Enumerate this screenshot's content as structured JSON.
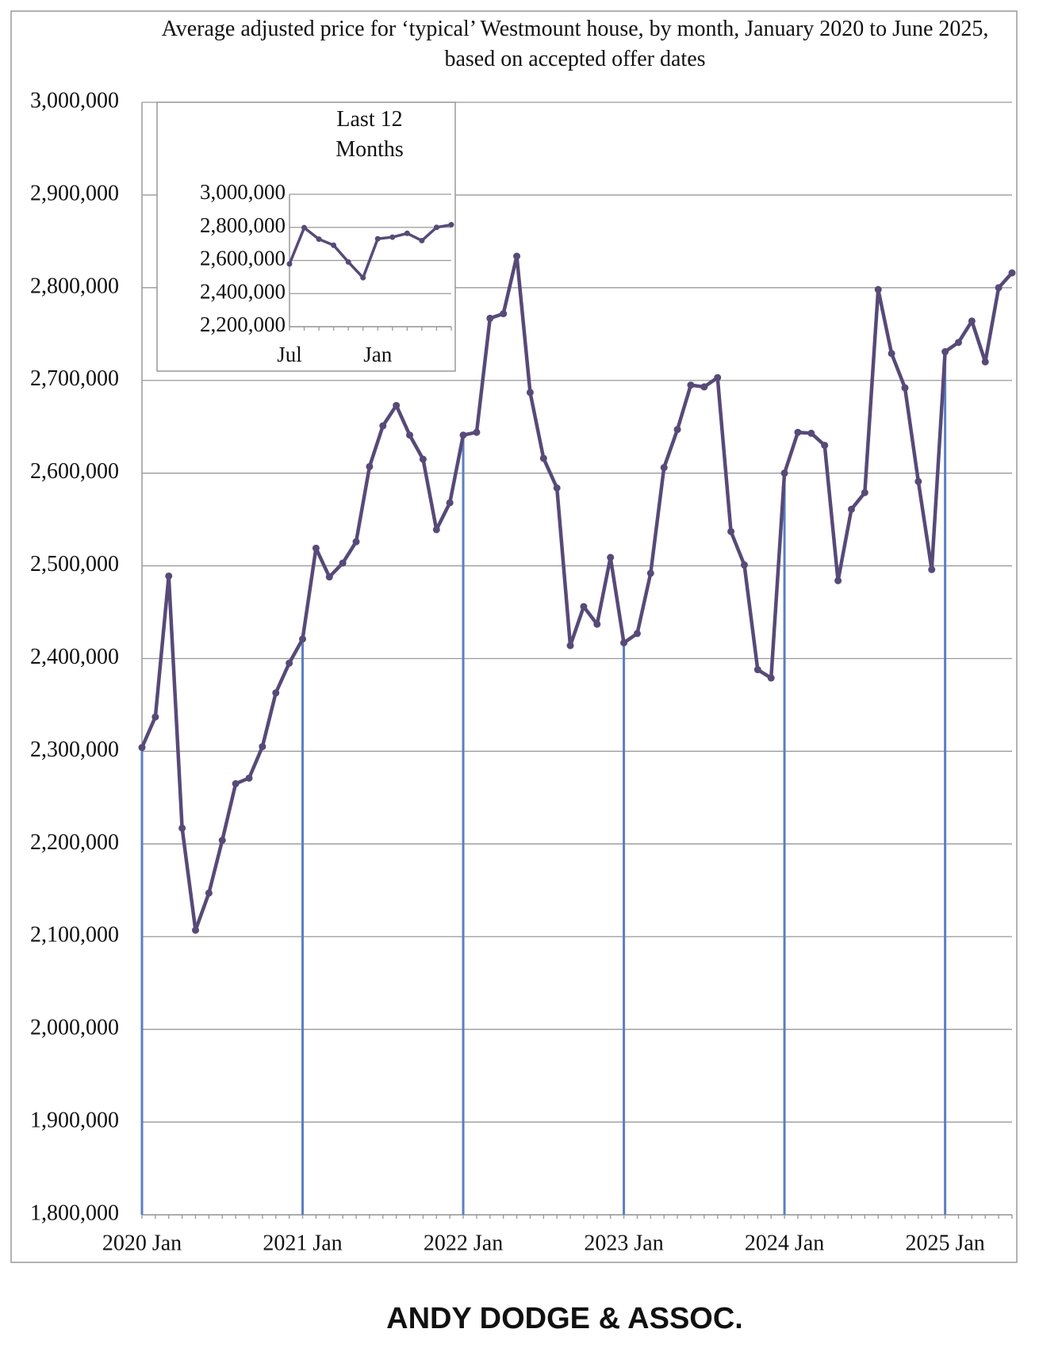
{
  "chart_data": [
    {
      "type": "line",
      "title": "Average adjusted price for ‘typical’ Westmount house, by month, January 2020 to June 2025, based on accepted offer dates",
      "categories": [
        "2020 Jan",
        null,
        null,
        null,
        null,
        null,
        null,
        null,
        null,
        null,
        null,
        null,
        "2021 Jan",
        null,
        null,
        null,
        null,
        null,
        null,
        null,
        null,
        null,
        null,
        null,
        "2022 Jan",
        null,
        null,
        null,
        null,
        null,
        null,
        null,
        null,
        null,
        null,
        null,
        "2023 Jan",
        null,
        null,
        null,
        null,
        null,
        null,
        null,
        null,
        null,
        null,
        null,
        "2024 Jan",
        null,
        null,
        null,
        null,
        null,
        null,
        null,
        null,
        null,
        null,
        null,
        "2025 Jan",
        null,
        null,
        null,
        null,
        null
      ],
      "series": [
        {
          "color": "#574a78",
          "values": [
            2304000,
            2337000,
            2489000,
            2217000,
            2107000,
            2147000,
            2204000,
            2265000,
            2271000,
            2305000,
            2363000,
            2395000,
            2421000,
            2519000,
            2488000,
            2503000,
            2526000,
            2607000,
            2651000,
            2673000,
            2641000,
            2615000,
            2539000,
            2568000,
            2641000,
            2644000,
            2767000,
            2772000,
            2834000,
            2687000,
            2616000,
            2584000,
            2414000,
            2456000,
            2437000,
            2509000,
            2417000,
            2427000,
            2492000,
            2606000,
            2647000,
            2695000,
            2693000,
            2703000,
            2537000,
            2501000,
            2388000,
            2379000,
            2600000,
            2644000,
            2643000,
            2630000,
            2484000,
            2561000,
            2579000,
            2798000,
            2729000,
            2692000,
            2591000,
            2496000,
            2731000,
            2741000,
            2764000,
            2720000,
            2800000,
            2816000
          ]
        }
      ],
      "drop_line_color": "#5b7fc0",
      "ylim": [
        1800000,
        3000000
      ],
      "yticks": [
        {
          "value": 1800000,
          "label": "1,800,000"
        },
        {
          "value": 1900000,
          "label": "1,900,000"
        },
        {
          "value": 2000000,
          "label": "2,000,000"
        },
        {
          "value": 2100000,
          "label": "2,100,000"
        },
        {
          "value": 2200000,
          "label": "2,200,000"
        },
        {
          "value": 2300000,
          "label": "2,300,000"
        },
        {
          "value": 2400000,
          "label": "2,400,000"
        },
        {
          "value": 2500000,
          "label": "2,500,000"
        },
        {
          "value": 2600000,
          "label": "2,600,000"
        },
        {
          "value": 2700000,
          "label": "2,700,000"
        },
        {
          "value": 2800000,
          "label": "2,800,000"
        },
        {
          "value": 2900000,
          "label": "2,900,000"
        },
        {
          "value": 3000000,
          "label": "3,000,000"
        }
      ],
      "grid": true
    },
    {
      "type": "line",
      "title": "Last 12 Months",
      "categories": [
        "Jul",
        null,
        null,
        null,
        null,
        null,
        "Jan",
        null,
        null,
        null,
        null,
        null
      ],
      "series": [
        {
          "color": "#574a78",
          "values": [
            2579000,
            2798000,
            2729000,
            2692000,
            2591000,
            2496000,
            2731000,
            2741000,
            2764000,
            2720000,
            2800000,
            2816000
          ]
        }
      ],
      "ylim": [
        2200000,
        3000000
      ],
      "yticks": [
        {
          "value": 2200000,
          "label": "2,200,000"
        },
        {
          "value": 2400000,
          "label": "2,400,000"
        },
        {
          "value": 2600000,
          "label": "2,600,000"
        },
        {
          "value": 2800000,
          "label": "2,800,000"
        },
        {
          "value": 3000000,
          "label": "3,000,000"
        }
      ],
      "grid": true
    }
  ],
  "footer": "ANDY DODGE & ASSOC."
}
